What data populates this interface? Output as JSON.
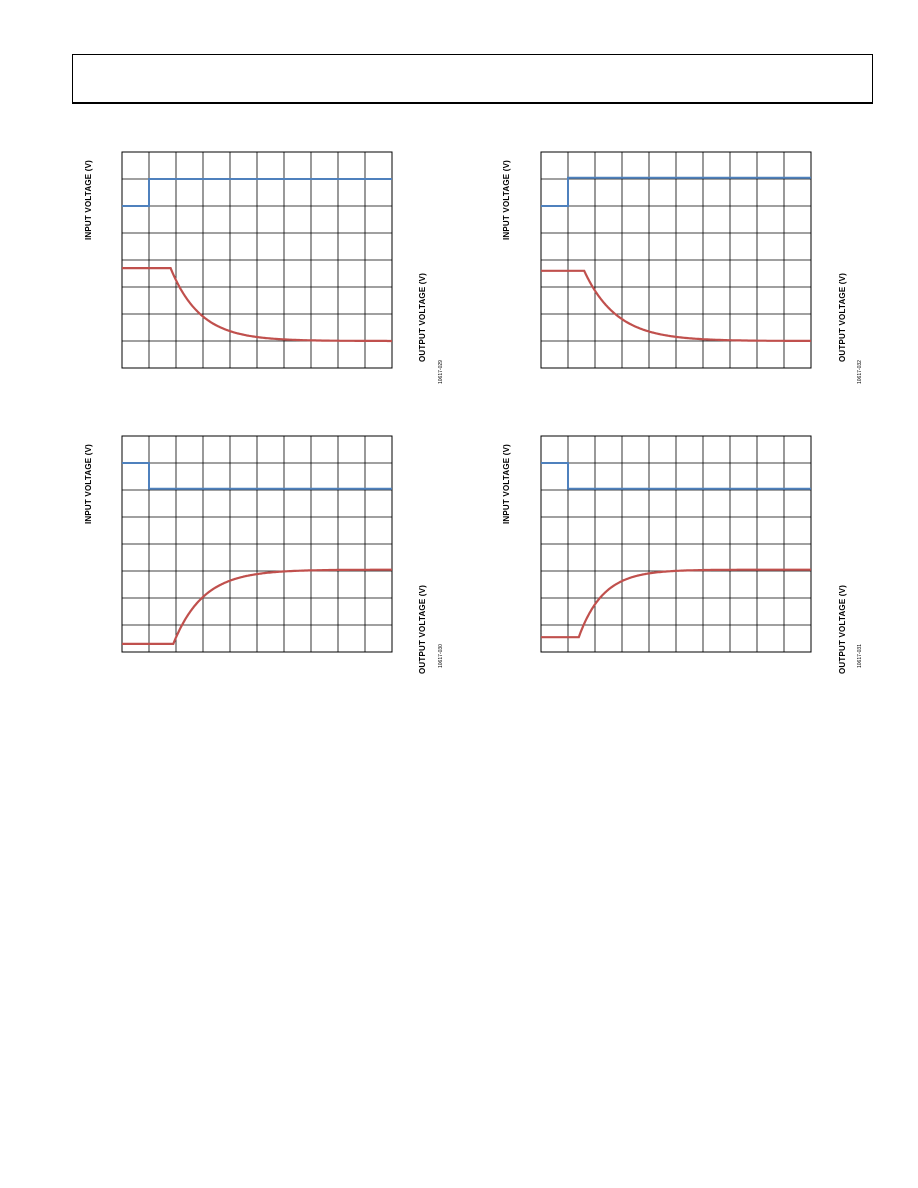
{
  "page": {
    "header": ""
  },
  "colors": {
    "input_trace": "#4f81bd",
    "output_trace": "#c0504d",
    "grid": "#000000"
  },
  "chart_data": [
    {
      "type": "line",
      "title": "",
      "ylabel_left": "INPUT VOLTAGE (V)",
      "ylabel_right": "OUTPUT VOLTAGE (V)",
      "figure_code": "10617-029",
      "grid": true,
      "xlim": [
        0,
        10
      ],
      "ylim": [
        0,
        8
      ],
      "series": [
        {
          "key": "input",
          "x": [
            0,
            1,
            1,
            10
          ],
          "values": [
            6,
            6,
            7,
            7
          ]
        },
        {
          "key": "output",
          "step_time": 1.8,
          "start": 3.7,
          "end": 1.0,
          "tau": 1.1
        }
      ]
    },
    {
      "type": "line",
      "title": "",
      "ylabel_left": "INPUT VOLTAGE (V)",
      "ylabel_right": "OUTPUT VOLTAGE (V)",
      "figure_code": "10617-032",
      "grid": true,
      "xlim": [
        0,
        10
      ],
      "ylim": [
        0,
        8
      ],
      "series": [
        {
          "key": "input",
          "x": [
            0,
            1,
            1,
            10
          ],
          "values": [
            6,
            6,
            7.05,
            7.05
          ]
        },
        {
          "key": "output",
          "step_time": 1.6,
          "start": 3.6,
          "end": 1.0,
          "tau": 1.2
        }
      ]
    },
    {
      "type": "line",
      "title": "",
      "ylabel_left": "INPUT VOLTAGE (V)",
      "ylabel_right": "OUTPUT VOLTAGE (V)",
      "figure_code": "10617-030",
      "grid": true,
      "xlim": [
        0,
        10
      ],
      "ylim": [
        0,
        8
      ],
      "series": [
        {
          "key": "input",
          "x": [
            0,
            1,
            1,
            10
          ],
          "values": [
            7,
            7,
            6.05,
            6.05
          ]
        },
        {
          "key": "output",
          "step_time": 1.9,
          "start": 0.3,
          "end": 3.05,
          "tau": 1.1
        }
      ]
    },
    {
      "type": "line",
      "title": "",
      "ylabel_left": "INPUT VOLTAGE (V)",
      "ylabel_right": "OUTPUT VOLTAGE (V)",
      "figure_code": "10617-031",
      "grid": true,
      "xlim": [
        0,
        10
      ],
      "ylim": [
        0,
        8
      ],
      "series": [
        {
          "key": "input",
          "x": [
            0,
            1,
            1,
            10
          ],
          "values": [
            7,
            7,
            6.05,
            6.05
          ]
        },
        {
          "key": "output",
          "step_time": 1.4,
          "start": 0.55,
          "end": 3.05,
          "tau": 0.9
        }
      ]
    }
  ]
}
